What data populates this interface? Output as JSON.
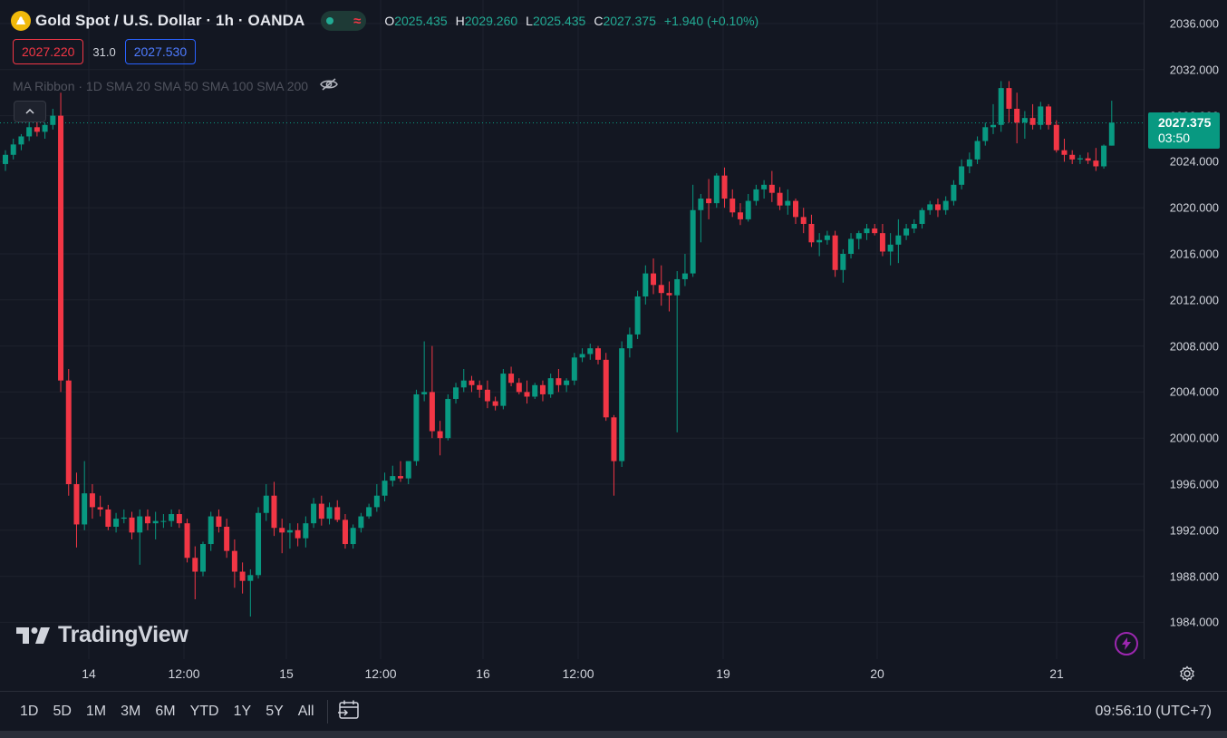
{
  "header": {
    "title": "Gold Spot / U.S. Dollar · 1h · OANDA",
    "status_icon": "market-open-dot",
    "wave_icon": "≈",
    "ohlc": {
      "o_label": "O",
      "o_value": "2025.435",
      "h_label": "H",
      "h_value": "2029.260",
      "l_label": "L",
      "l_value": "2025.435",
      "c_label": "C",
      "c_value": "2027.375",
      "change": "+1.940 (+0.10%)"
    }
  },
  "quotes": {
    "bid": "2027.220",
    "spread": "31.0",
    "ask": "2027.530"
  },
  "indicator": {
    "label": "MA Ribbon · 1D SMA 20 SMA 50 SMA 100 SMA 200"
  },
  "price_tag": {
    "price": "2027.375",
    "countdown": "03:50"
  },
  "logo": {
    "text": "TradingView"
  },
  "footer": {
    "ranges": [
      "1D",
      "5D",
      "1M",
      "3M",
      "6M",
      "YTD",
      "1Y",
      "5Y",
      "All"
    ],
    "clock": "09:56:10 (UTC+7)"
  },
  "colors": {
    "up": "#089981",
    "down": "#f23645",
    "background": "#131722",
    "grid": "#1e222d"
  },
  "chart_data": {
    "type": "candlestick",
    "y_ticks": [
      "2036.000",
      "2032.000",
      "2028.000",
      "2024.000",
      "2020.000",
      "2016.000",
      "2012.000",
      "2008.000",
      "2004.000",
      "2000.000",
      "1996.000",
      "1992.000",
      "1988.000",
      "1984.000"
    ],
    "x_ticks": [
      "14",
      "12:00",
      "15",
      "12:00",
      "16",
      "12:00",
      "19",
      "20",
      "21"
    ],
    "ylim": [
      1982,
      2037
    ],
    "last_price": 2027.375,
    "candles": [
      [
        2023.8,
        2025.0,
        2023.2,
        2024.6
      ],
      [
        2024.6,
        2026.0,
        2024.2,
        2025.5
      ],
      [
        2025.5,
        2026.4,
        2025.0,
        2026.2
      ],
      [
        2026.2,
        2027.5,
        2025.8,
        2027.0
      ],
      [
        2027.0,
        2027.6,
        2026.2,
        2026.6
      ],
      [
        2026.6,
        2027.4,
        2026.0,
        2027.2
      ],
      [
        2027.2,
        2028.6,
        2026.8,
        2028.0
      ],
      [
        2028.0,
        2030.0,
        2004.0,
        2005.0
      ],
      [
        2005.0,
        2006.0,
        1995.0,
        1996.0
      ],
      [
        1996.0,
        1997.0,
        1990.5,
        1992.5
      ],
      [
        1992.5,
        1998.0,
        1992.0,
        1995.2
      ],
      [
        1995.2,
        1996.0,
        1993.0,
        1994.0
      ],
      [
        1994.0,
        1995.0,
        1993.2,
        1993.8
      ],
      [
        1993.8,
        1994.2,
        1992.0,
        1992.3
      ],
      [
        1992.3,
        1993.5,
        1991.8,
        1993.0
      ],
      [
        1993.0,
        1993.8,
        1992.6,
        1993.1
      ],
      [
        1993.1,
        1993.6,
        1991.2,
        1991.8
      ],
      [
        1991.8,
        1993.8,
        1989.0,
        1993.2
      ],
      [
        1993.2,
        1993.8,
        1992.0,
        1992.6
      ],
      [
        1992.6,
        1993.6,
        1991.2,
        1992.8
      ],
      [
        1992.8,
        1993.4,
        1992.2,
        1992.8
      ],
      [
        1992.8,
        1993.8,
        1992.3,
        1993.4
      ],
      [
        1993.4,
        1993.8,
        1992.2,
        1992.6
      ],
      [
        1992.6,
        1993.0,
        1989.2,
        1989.6
      ],
      [
        1989.6,
        1990.6,
        1986.0,
        1988.4
      ],
      [
        1988.4,
        1991.0,
        1988.0,
        1990.8
      ],
      [
        1990.8,
        1993.6,
        1990.2,
        1993.2
      ],
      [
        1993.2,
        1993.8,
        1991.8,
        1992.3
      ],
      [
        1992.3,
        1993.0,
        1989.6,
        1990.2
      ],
      [
        1990.2,
        1991.2,
        1987.0,
        1988.4
      ],
      [
        1988.4,
        1989.2,
        1986.5,
        1987.6
      ],
      [
        1987.6,
        1988.6,
        1984.5,
        1988.1
      ],
      [
        1988.1,
        1994.0,
        1987.8,
        1993.5
      ],
      [
        1993.5,
        1996.0,
        1992.8,
        1995.0
      ],
      [
        1995.0,
        1996.2,
        1991.5,
        1992.2
      ],
      [
        1992.2,
        1993.0,
        1990.0,
        1991.8
      ],
      [
        1991.8,
        1992.6,
        1990.4,
        1992.0
      ],
      [
        1992.0,
        1992.6,
        1990.6,
        1991.3
      ],
      [
        1991.3,
        1993.2,
        1990.5,
        1992.6
      ],
      [
        1992.6,
        1994.8,
        1992.2,
        1994.3
      ],
      [
        1994.3,
        1995.0,
        1992.4,
        1993.0
      ],
      [
        1993.0,
        1994.4,
        1992.5,
        1994.0
      ],
      [
        1994.0,
        1994.6,
        1992.7,
        1992.9
      ],
      [
        1992.9,
        1993.4,
        1990.4,
        1990.8
      ],
      [
        1990.8,
        1992.5,
        1990.4,
        1992.2
      ],
      [
        1992.2,
        1993.5,
        1991.8,
        1993.2
      ],
      [
        1993.2,
        1994.3,
        1993.0,
        1994.0
      ],
      [
        1994.0,
        1996.0,
        1993.6,
        1995.0
      ],
      [
        1995.0,
        1997.0,
        1994.5,
        1996.3
      ],
      [
        1996.3,
        1997.6,
        1995.8,
        1996.7
      ],
      [
        1996.7,
        1998.0,
        1996.2,
        1996.5
      ],
      [
        1996.5,
        1998.0,
        1996.0,
        1998.0
      ],
      [
        1998.0,
        2004.2,
        1997.6,
        2003.8
      ],
      [
        2003.8,
        2008.4,
        2003.2,
        2004.0
      ],
      [
        2004.0,
        2008.0,
        2000.0,
        2000.6
      ],
      [
        2000.6,
        2001.5,
        1998.5,
        2000.0
      ],
      [
        2000.0,
        2003.8,
        1999.8,
        2003.4
      ],
      [
        2003.4,
        2004.8,
        2003.0,
        2004.4
      ],
      [
        2004.4,
        2006.0,
        2004.0,
        2005.0
      ],
      [
        2005.0,
        2005.4,
        2004.0,
        2004.6
      ],
      [
        2004.6,
        2005.0,
        2003.5,
        2004.2
      ],
      [
        2004.2,
        2005.0,
        2002.6,
        2003.2
      ],
      [
        2003.2,
        2003.6,
        2002.4,
        2002.8
      ],
      [
        2002.8,
        2006.0,
        2002.5,
        2005.6
      ],
      [
        2005.6,
        2006.2,
        2004.5,
        2004.8
      ],
      [
        2004.8,
        2005.2,
        2003.8,
        2004.0
      ],
      [
        2004.0,
        2005.0,
        2003.0,
        2003.6
      ],
      [
        2003.6,
        2004.8,
        2003.4,
        2004.6
      ],
      [
        2004.6,
        2005.0,
        2003.2,
        2003.8
      ],
      [
        2003.8,
        2005.6,
        2003.5,
        2005.2
      ],
      [
        2005.2,
        2006.0,
        2004.0,
        2004.6
      ],
      [
        2004.6,
        2005.2,
        2004.0,
        2005.0
      ],
      [
        2005.0,
        2007.4,
        2004.6,
        2007.0
      ],
      [
        2007.0,
        2007.8,
        2006.6,
        2007.3
      ],
      [
        2007.3,
        2008.2,
        2006.8,
        2007.8
      ],
      [
        2007.8,
        2008.0,
        2006.4,
        2006.8
      ],
      [
        2006.8,
        2007.4,
        2001.5,
        2001.8
      ],
      [
        2001.8,
        2002.0,
        1995.0,
        1998.0
      ],
      [
        1998.0,
        2008.4,
        1997.5,
        2007.8
      ],
      [
        2007.8,
        2009.6,
        2007.0,
        2009.0
      ],
      [
        2009.0,
        2012.8,
        2008.6,
        2012.3
      ],
      [
        2012.3,
        2015.0,
        2011.6,
        2014.3
      ],
      [
        2014.3,
        2015.6,
        2012.5,
        2013.3
      ],
      [
        2013.3,
        2015.0,
        2011.5,
        2012.6
      ],
      [
        2012.6,
        2013.6,
        2011.0,
        2012.4
      ],
      [
        2012.4,
        2014.5,
        2000.5,
        2013.8
      ],
      [
        2013.8,
        2016.0,
        2013.2,
        2014.3
      ],
      [
        2014.3,
        2022.0,
        2014.0,
        2019.8
      ],
      [
        2019.8,
        2021.2,
        2017.0,
        2020.8
      ],
      [
        2020.8,
        2022.5,
        2019.0,
        2020.4
      ],
      [
        2020.4,
        2023.0,
        2020.0,
        2022.8
      ],
      [
        2022.8,
        2023.5,
        2020.0,
        2020.8
      ],
      [
        2020.8,
        2021.6,
        2019.2,
        2019.6
      ],
      [
        2019.6,
        2020.4,
        2018.5,
        2019.0
      ],
      [
        2019.0,
        2021.2,
        2018.8,
        2020.6
      ],
      [
        2020.6,
        2022.0,
        2020.2,
        2021.6
      ],
      [
        2021.6,
        2022.4,
        2020.8,
        2022.0
      ],
      [
        2022.0,
        2023.2,
        2020.5,
        2021.3
      ],
      [
        2021.3,
        2021.8,
        2019.8,
        2020.2
      ],
      [
        2020.2,
        2021.6,
        2019.4,
        2020.6
      ],
      [
        2020.6,
        2020.8,
        2018.6,
        2019.2
      ],
      [
        2019.2,
        2020.0,
        2017.8,
        2018.6
      ],
      [
        2018.6,
        2019.4,
        2016.6,
        2017.0
      ],
      [
        2017.0,
        2017.8,
        2015.8,
        2017.2
      ],
      [
        2017.2,
        2018.0,
        2016.8,
        2017.6
      ],
      [
        2017.6,
        2018.0,
        2014.0,
        2014.6
      ],
      [
        2014.6,
        2016.4,
        2013.5,
        2016.0
      ],
      [
        2016.0,
        2017.8,
        2015.6,
        2017.3
      ],
      [
        2017.3,
        2018.0,
        2016.4,
        2017.8
      ],
      [
        2017.8,
        2018.6,
        2017.2,
        2018.2
      ],
      [
        2018.2,
        2018.6,
        2017.6,
        2017.8
      ],
      [
        2017.8,
        2018.6,
        2015.8,
        2016.2
      ],
      [
        2016.2,
        2017.8,
        2015.0,
        2016.8
      ],
      [
        2016.8,
        2019.0,
        2015.2,
        2017.6
      ],
      [
        2017.6,
        2018.6,
        2017.2,
        2018.2
      ],
      [
        2018.2,
        2019.0,
        2017.8,
        2018.6
      ],
      [
        2018.6,
        2020.0,
        2018.2,
        2019.8
      ],
      [
        2019.8,
        2020.6,
        2019.4,
        2020.3
      ],
      [
        2020.3,
        2020.8,
        2019.2,
        2019.8
      ],
      [
        2019.8,
        2021.0,
        2019.4,
        2020.6
      ],
      [
        2020.6,
        2022.4,
        2020.2,
        2022.0
      ],
      [
        2022.0,
        2024.2,
        2021.6,
        2023.6
      ],
      [
        2023.6,
        2024.8,
        2023.0,
        2024.2
      ],
      [
        2024.2,
        2026.2,
        2023.8,
        2025.8
      ],
      [
        2025.8,
        2027.4,
        2025.4,
        2027.0
      ],
      [
        2027.0,
        2029.0,
        2026.4,
        2027.2
      ],
      [
        2027.2,
        2031.0,
        2026.6,
        2030.4
      ],
      [
        2030.4,
        2031.0,
        2027.4,
        2028.6
      ],
      [
        2028.6,
        2030.0,
        2025.6,
        2027.4
      ],
      [
        2027.4,
        2028.4,
        2026.0,
        2027.8
      ],
      [
        2027.8,
        2029.0,
        2026.8,
        2027.2
      ],
      [
        2027.2,
        2029.2,
        2026.8,
        2028.8
      ],
      [
        2028.8,
        2029.0,
        2026.8,
        2027.2
      ],
      [
        2027.2,
        2027.6,
        2024.8,
        2025.0
      ],
      [
        2025.0,
        2026.0,
        2024.0,
        2024.6
      ],
      [
        2024.6,
        2025.0,
        2023.8,
        2024.2
      ],
      [
        2024.2,
        2024.6,
        2023.8,
        2024.3
      ],
      [
        2024.3,
        2024.8,
        2023.8,
        2024.1
      ],
      [
        2024.1,
        2025.2,
        2023.2,
        2023.6
      ],
      [
        2023.6,
        2025.5,
        2023.4,
        2025.4
      ],
      [
        2025.4,
        2029.3,
        2025.4,
        2027.4
      ]
    ]
  }
}
